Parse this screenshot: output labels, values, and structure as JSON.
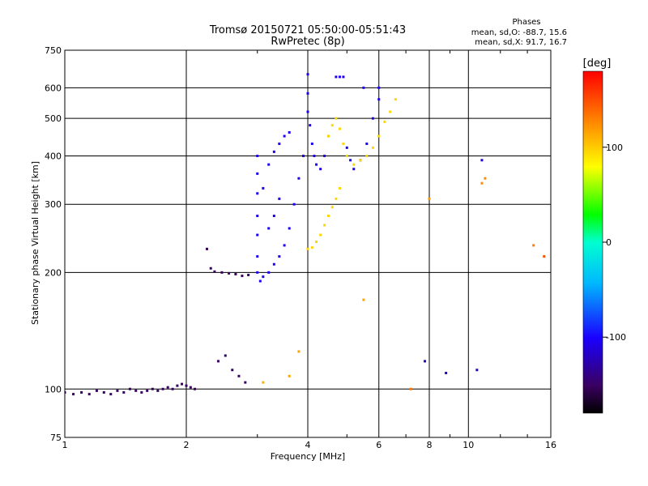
{
  "chart_data": {
    "type": "scatter",
    "title": "Tromsø 20150721 05:50:00-05:51:43",
    "subtitle": "RwPretec (8p)",
    "xlabel": "Frequency [MHz]",
    "ylabel": "Stationary phase Virtual Height [km]",
    "x_scale": "log",
    "y_scale": "log",
    "xlim": [
      1,
      16
    ],
    "ylim": [
      75,
      750
    ],
    "x_ticks": [
      1,
      2,
      4,
      6,
      8,
      10,
      16
    ],
    "x_tick_labels": [
      "1",
      "2",
      "4",
      "6",
      "8",
      "10",
      "16"
    ],
    "y_ticks": [
      75,
      100,
      200,
      300,
      400,
      500,
      600,
      750
    ],
    "y_tick_labels": [
      "75",
      "100",
      "200",
      "300",
      "400",
      "500",
      "600",
      "750"
    ],
    "grid": true,
    "phase_stats": {
      "heading": "Phases",
      "line_o": "mean, sd,O: -88.7, 15.6",
      "line_x": "mean, sd,X:  91.7, 16.7"
    },
    "colorbar": {
      "label": "[deg]",
      "range": [
        -180,
        180
      ],
      "ticks": [
        100,
        0,
        -100
      ],
      "tick_labels": [
        "100",
        "0",
        "-100"
      ]
    },
    "series": [
      {
        "mode": "O",
        "phase_mean": -88.7,
        "points": [
          [
            1.0,
            98,
            -150
          ],
          [
            1.05,
            97,
            -150
          ],
          [
            1.1,
            98,
            -150
          ],
          [
            1.15,
            97,
            -150
          ],
          [
            1.2,
            99,
            -150
          ],
          [
            1.25,
            98,
            -150
          ],
          [
            1.3,
            97,
            -150
          ],
          [
            1.35,
            99,
            -150
          ],
          [
            1.4,
            98,
            -150
          ],
          [
            1.45,
            100,
            -150
          ],
          [
            1.5,
            99,
            -150
          ],
          [
            1.55,
            98,
            -150
          ],
          [
            1.6,
            99,
            -150
          ],
          [
            1.65,
            100,
            -150
          ],
          [
            1.7,
            99,
            -150
          ],
          [
            1.75,
            100,
            -150
          ],
          [
            1.8,
            101,
            -150
          ],
          [
            1.85,
            100,
            -150
          ],
          [
            1.9,
            102,
            -150
          ],
          [
            1.95,
            103,
            -150
          ],
          [
            2.0,
            102,
            -150
          ],
          [
            2.05,
            101,
            -150
          ],
          [
            2.1,
            100,
            -150
          ],
          [
            2.25,
            230,
            -150
          ],
          [
            2.3,
            205,
            -150
          ],
          [
            2.35,
            201,
            -150
          ],
          [
            2.45,
            200,
            -150
          ],
          [
            2.55,
            199,
            -150
          ],
          [
            2.65,
            198,
            -150
          ],
          [
            2.75,
            196,
            -150
          ],
          [
            2.85,
            197,
            -150
          ],
          [
            2.4,
            118,
            -150
          ],
          [
            2.5,
            122,
            -150
          ],
          [
            2.6,
            112,
            -150
          ],
          [
            2.7,
            108,
            -150
          ],
          [
            2.8,
            104,
            -150
          ],
          [
            3.0,
            400,
            -105
          ],
          [
            3.0,
            360,
            -105
          ],
          [
            3.0,
            320,
            -105
          ],
          [
            3.0,
            280,
            -105
          ],
          [
            3.0,
            250,
            -105
          ],
          [
            3.0,
            220,
            -105
          ],
          [
            3.0,
            200,
            -105
          ],
          [
            3.05,
            190,
            -105
          ],
          [
            3.1,
            195,
            -105
          ],
          [
            3.2,
            200,
            -105
          ],
          [
            3.3,
            210,
            -105
          ],
          [
            3.4,
            220,
            -105
          ],
          [
            3.5,
            235,
            -105
          ],
          [
            3.6,
            260,
            -105
          ],
          [
            3.7,
            300,
            -105
          ],
          [
            3.8,
            350,
            -105
          ],
          [
            3.9,
            400,
            -105
          ],
          [
            3.1,
            330,
            -105
          ],
          [
            3.2,
            380,
            -105
          ],
          [
            3.3,
            410,
            -105
          ],
          [
            3.4,
            430,
            -105
          ],
          [
            3.5,
            450,
            -105
          ],
          [
            3.6,
            460,
            -105
          ],
          [
            3.4,
            310,
            -105
          ],
          [
            3.3,
            280,
            -105
          ],
          [
            3.2,
            260,
            -105
          ],
          [
            4.0,
            650,
            -105
          ],
          [
            4.0,
            580,
            -105
          ],
          [
            4.0,
            520,
            -105
          ],
          [
            4.05,
            480,
            -105
          ],
          [
            4.1,
            430,
            -105
          ],
          [
            4.15,
            400,
            -105
          ],
          [
            4.2,
            380,
            -105
          ],
          [
            4.3,
            370,
            -105
          ],
          [
            4.4,
            400,
            -105
          ],
          [
            4.5,
            450,
            -105
          ],
          [
            4.7,
            640,
            -105
          ],
          [
            4.8,
            640,
            -105
          ],
          [
            4.9,
            640,
            -105
          ],
          [
            5.0,
            420,
            -105
          ],
          [
            5.1,
            390,
            -105
          ],
          [
            5.2,
            370,
            -105
          ],
          [
            5.4,
            390,
            -105
          ],
          [
            5.6,
            430,
            -105
          ],
          [
            5.8,
            500,
            -105
          ],
          [
            6.0,
            560,
            -105
          ],
          [
            6.0,
            600,
            -105
          ],
          [
            5.5,
            600,
            -105
          ],
          [
            7.8,
            118,
            -115
          ],
          [
            8.8,
            110,
            -120
          ],
          [
            10.5,
            112,
            -120
          ],
          [
            10.8,
            390,
            -110
          ]
        ]
      },
      {
        "mode": "X",
        "phase_mean": 91.7,
        "points": [
          [
            4.0,
            230,
            95
          ],
          [
            4.1,
            232,
            95
          ],
          [
            4.2,
            240,
            95
          ],
          [
            4.3,
            250,
            95
          ],
          [
            4.4,
            265,
            95
          ],
          [
            4.5,
            280,
            95
          ],
          [
            4.6,
            295,
            95
          ],
          [
            4.7,
            310,
            95
          ],
          [
            4.8,
            330,
            95
          ],
          [
            4.5,
            450,
            95
          ],
          [
            4.6,
            480,
            95
          ],
          [
            4.7,
            500,
            95
          ],
          [
            4.8,
            470,
            95
          ],
          [
            4.9,
            430,
            95
          ],
          [
            5.0,
            400,
            95
          ],
          [
            5.2,
            380,
            95
          ],
          [
            5.4,
            390,
            95
          ],
          [
            5.6,
            400,
            95
          ],
          [
            5.8,
            420,
            95
          ],
          [
            6.0,
            450,
            95
          ],
          [
            6.2,
            490,
            95
          ],
          [
            6.4,
            520,
            95
          ],
          [
            6.6,
            560,
            95
          ],
          [
            3.1,
            104,
            110
          ],
          [
            3.6,
            108,
            115
          ],
          [
            3.8,
            125,
            115
          ],
          [
            5.5,
            170,
            115
          ],
          [
            7.2,
            100,
            135
          ],
          [
            8.0,
            310,
            120
          ],
          [
            10.8,
            340,
            125
          ],
          [
            11.0,
            350,
            125
          ],
          [
            14.5,
            235,
            130
          ],
          [
            15.4,
            220,
            150
          ]
        ]
      }
    ]
  }
}
